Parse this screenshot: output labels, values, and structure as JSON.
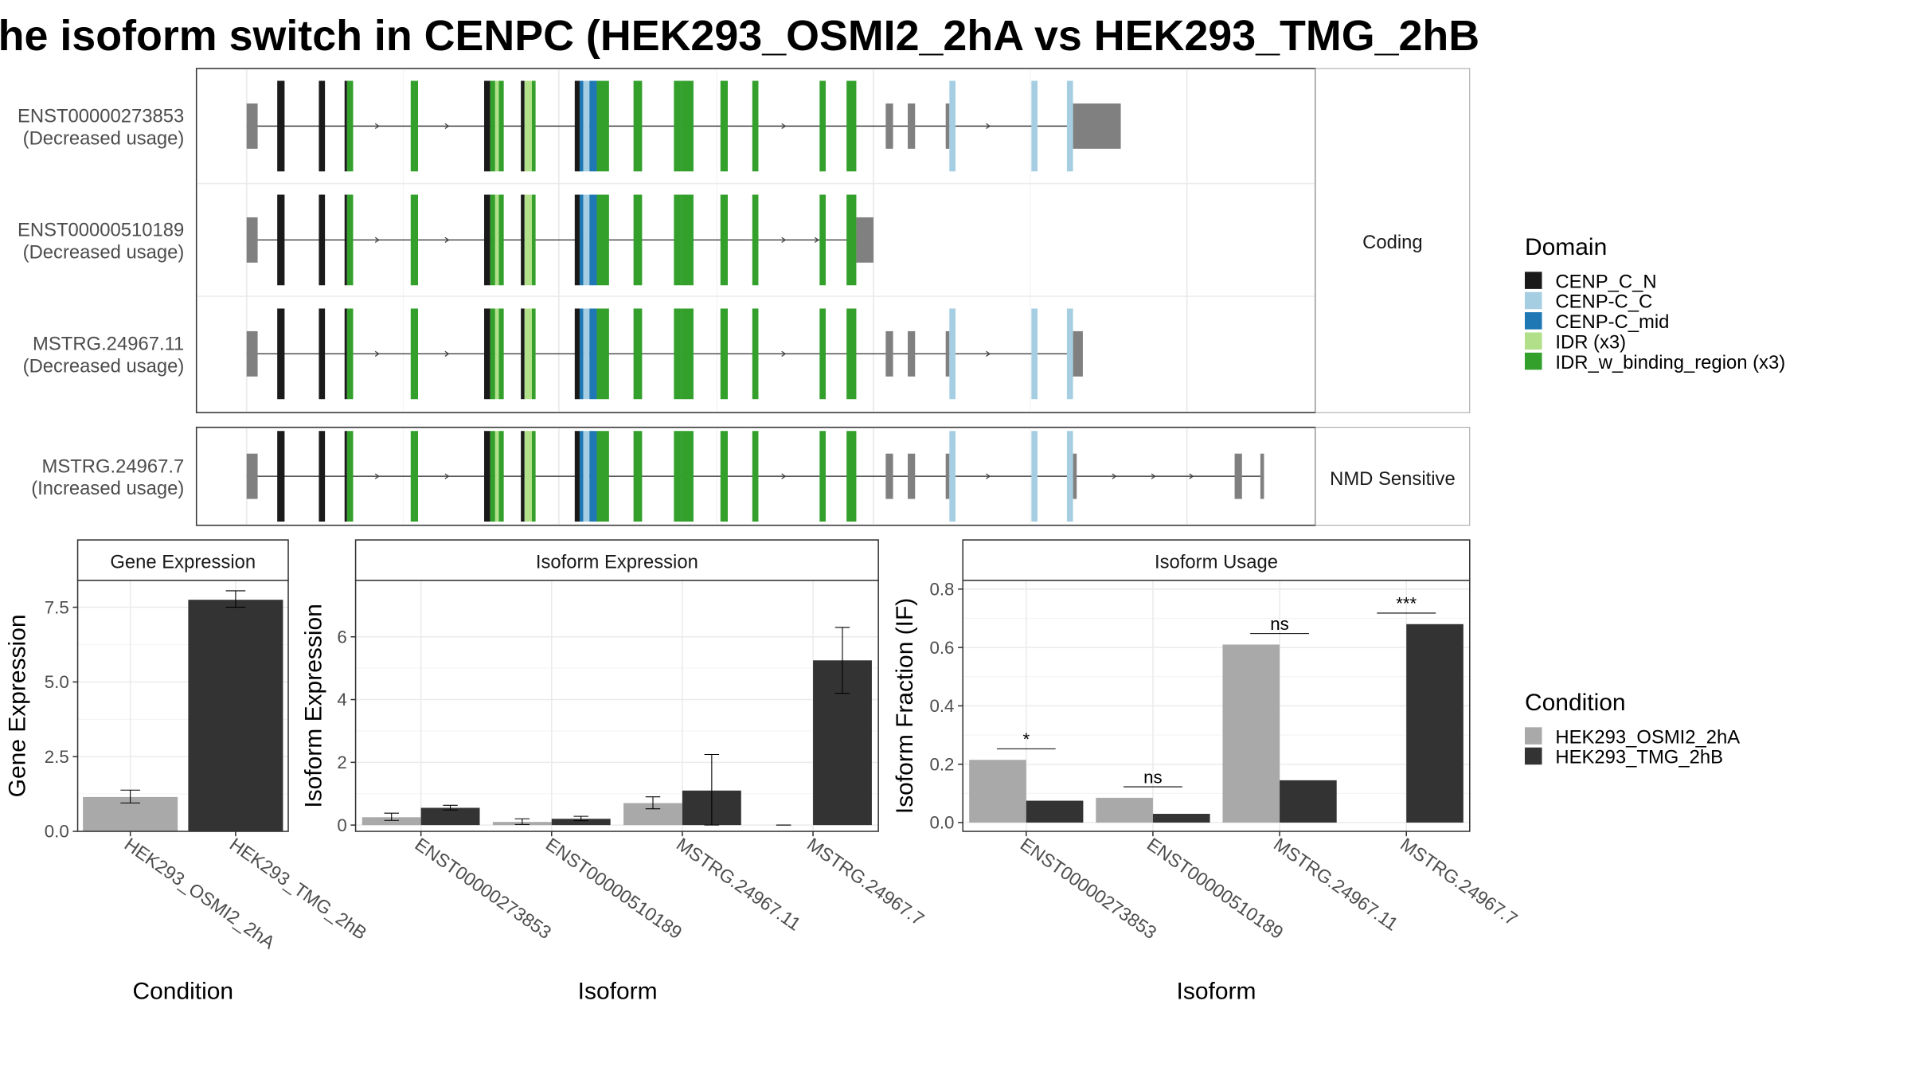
{
  "title": "he isoform switch in CENPC (HEK293_OSMI2_2hA vs HEK293_TMG_2hB",
  "transcripts": [
    {
      "name": "ENST00000273853",
      "usage": "(Decreased usage)",
      "group": "coding"
    },
    {
      "name": "ENST00000510189",
      "usage": "(Decreased usage)",
      "group": "coding"
    },
    {
      "name": "MSTRG.24967.11",
      "usage": "(Decreased usage)",
      "group": "coding"
    },
    {
      "name": "MSTRG.24967.7",
      "usage": "(Increased usage)",
      "group": "nmd"
    }
  ],
  "strip_labels": {
    "coding": "Coding",
    "nmd": "NMD Sensitive"
  },
  "domain_legend": {
    "title": "Domain",
    "items": [
      {
        "label": "CENP_C_N",
        "color": "#1a1a1a"
      },
      {
        "label": "CENP-C_C",
        "color": "#a6cee3"
      },
      {
        "label": "CENP-C_mid",
        "color": "#1f78b4"
      },
      {
        "label": "IDR (x3)",
        "color": "#b2df8a"
      },
      {
        "label": "IDR_w_binding_region (x3)",
        "color": "#33a02c"
      }
    ]
  },
  "condition_legend": {
    "title": "Condition",
    "items": [
      {
        "label": "HEK293_OSMI2_2hA",
        "color": "#a9a9a9"
      },
      {
        "label": "HEK293_TMG_2hB",
        "color": "#333333"
      }
    ]
  },
  "colors": {
    "utr": "#808080",
    "intron": "#404040",
    "panel_border": "#333333",
    "grid": "#ebebeb",
    "strip_border": "#999999"
  },
  "chart_data": [
    {
      "type": "bar",
      "title": "Gene Expression",
      "xlabel": "Condition",
      "ylabel": "Gene Expression",
      "categories": [
        "HEK293_OSMI2_2hA",
        "HEK293_TMG_2hB"
      ],
      "values": [
        1.15,
        7.75
      ],
      "errors": [
        [
          0.95,
          1.38
        ],
        [
          7.5,
          8.05
        ]
      ],
      "colors": [
        "#a9a9a9",
        "#333333"
      ],
      "yticks": [
        "0.0",
        "2.5",
        "5.0",
        "7.5"
      ],
      "ylim": [
        0,
        8.4
      ]
    },
    {
      "type": "bar",
      "title": "Isoform Expression",
      "xlabel": "Isoform",
      "ylabel": "Isoform Expression",
      "categories": [
        "ENST00000273853",
        "ENST00000510189",
        "MSTRG.24967.11",
        "MSTRG.24967.7"
      ],
      "series": [
        {
          "name": "HEK293_OSMI2_2hA",
          "values": [
            0.25,
            0.1,
            0.7,
            0.0
          ],
          "errors": [
            [
              0.15,
              0.38
            ],
            [
              0.02,
              0.2
            ],
            [
              0.52,
              0.9
            ],
            [
              0.0,
              0.0
            ]
          ]
        },
        {
          "name": "HEK293_TMG_2hB",
          "values": [
            0.55,
            0.2,
            1.1,
            5.25
          ],
          "errors": [
            [
              0.48,
              0.63
            ],
            [
              0.14,
              0.28
            ],
            [
              0.0,
              2.25
            ],
            [
              4.2,
              6.3
            ]
          ]
        }
      ],
      "yticks": [
        "0",
        "2",
        "4",
        "6"
      ],
      "ylim": [
        -0.2,
        7.8
      ]
    },
    {
      "type": "bar",
      "title": "Isoform Usage",
      "xlabel": "Isoform",
      "ylabel": "Isoform Fraction (IF)",
      "categories": [
        "ENST00000273853",
        "ENST00000510189",
        "MSTRG.24967.11",
        "MSTRG.24967.7"
      ],
      "series": [
        {
          "name": "HEK293_OSMI2_2hA",
          "values": [
            0.215,
            0.085,
            0.61,
            0.0
          ]
        },
        {
          "name": "HEK293_TMG_2hB",
          "values": [
            0.075,
            0.03,
            0.145,
            0.68
          ]
        }
      ],
      "significance": [
        "*",
        "ns",
        "ns",
        "***"
      ],
      "yticks": [
        "0.0",
        "0.2",
        "0.4",
        "0.6",
        "0.8"
      ],
      "ylim": [
        -0.03,
        0.83
      ]
    }
  ]
}
